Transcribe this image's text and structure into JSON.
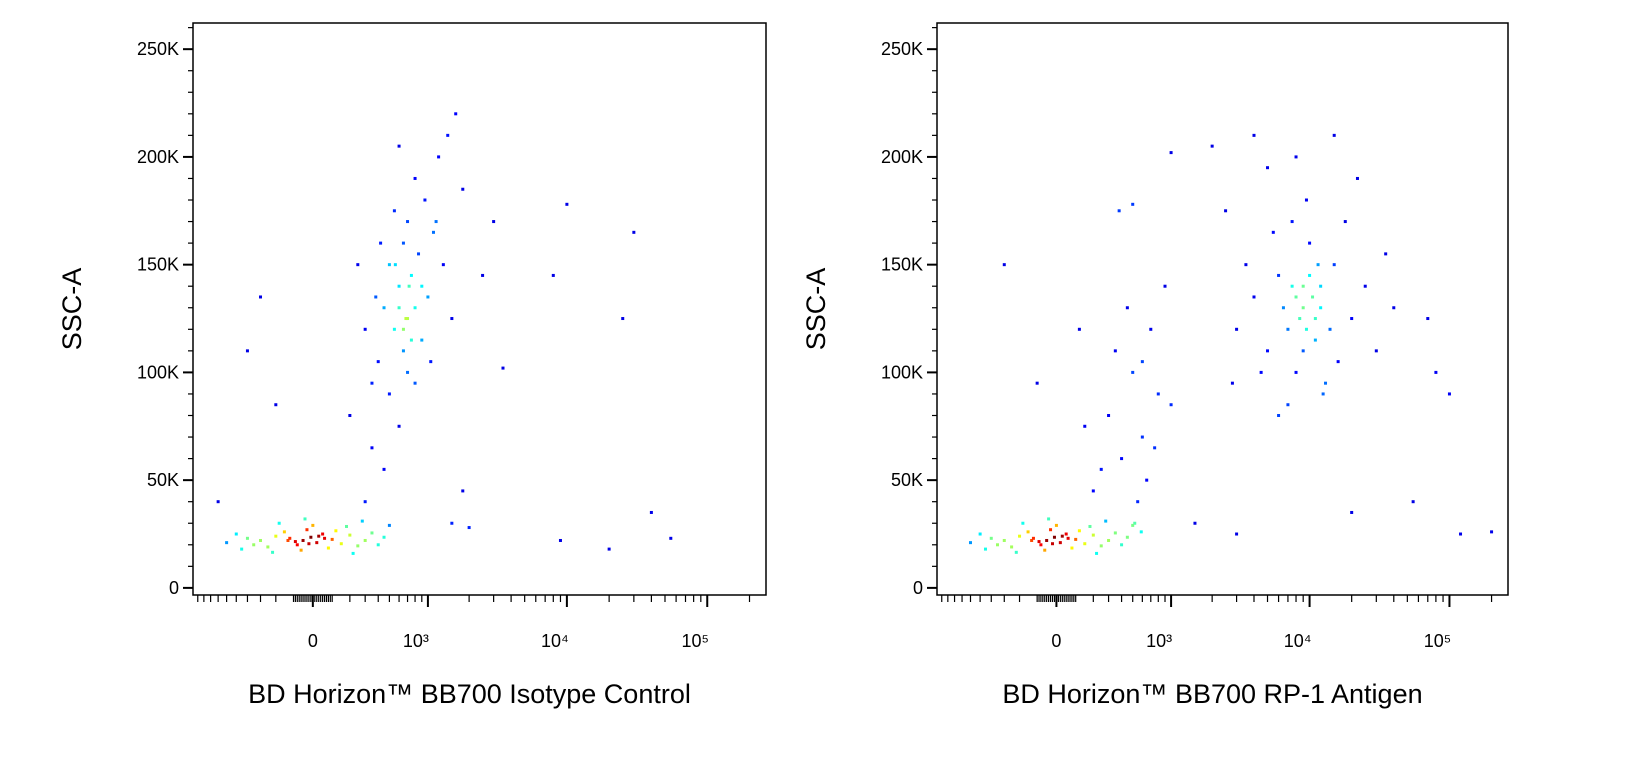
{
  "chart_data": [
    {
      "type": "scatter",
      "xscale": "biexponential",
      "x_label": "BD Horizon™ BB700  Isotype Control",
      "y_label": "SSC-A",
      "xlim": [
        -1085,
        262144
      ],
      "ylim": [
        -3300,
        262144
      ],
      "xticks": [
        0,
        {
          "value": 1000,
          "label": "10³"
        },
        {
          "value": 10000,
          "label": "10⁴"
        },
        {
          "value": 100000,
          "label": "10⁵"
        }
      ],
      "yticks": [
        0,
        {
          "value": 50000,
          "label": "50K"
        },
        {
          "value": 100000,
          "label": "100K"
        },
        {
          "value": 150000,
          "label": "150K"
        },
        {
          "value": 200000,
          "label": "200K"
        },
        {
          "value": 250000,
          "label": "250K"
        }
      ],
      "x": [
        -50,
        -120,
        20,
        -200,
        100,
        -80,
        50,
        -300,
        150,
        -10,
        -250,
        200,
        -150,
        80,
        -400,
        300,
        -30,
        120,
        -350,
        250,
        -60,
        -500,
        350,
        0,
        -180,
        180,
        -450,
        400,
        -90,
        60,
        -20,
        30,
        -130,
        -600,
        450,
        -220,
        220,
        500,
        -40,
        280,
        300,
        450,
        350,
        600,
        500,
        800,
        400,
        650,
        550,
        900,
        700,
        450,
        1000,
        600,
        750,
        500,
        850,
        650,
        1100,
        700,
        550,
        950,
        800,
        1200,
        600,
        1400,
        1600,
        380,
        300,
        1300,
        1500,
        200,
        420,
        900,
        1050,
        700,
        350,
        1800,
        250,
        1150,
        800,
        650,
        720,
        560,
        600,
        680,
        750,
        3000,
        10000,
        30000,
        8000,
        25000,
        2500,
        3500,
        1800,
        2000,
        9000,
        20000,
        40000,
        55000,
        1500,
        -700,
        -400,
        -200,
        -300
      ],
      "y": [
        22000,
        23000,
        21000,
        24000,
        22500,
        20000,
        25000,
        22000,
        20500,
        23500,
        19000,
        24500,
        26000,
        18500,
        23000,
        22000,
        27000,
        26500,
        20000,
        19500,
        17500,
        25000,
        25500,
        29000,
        30000,
        28500,
        18000,
        20000,
        21500,
        23000,
        20500,
        24000,
        22000,
        21000,
        23500,
        16500,
        16000,
        29000,
        32000,
        31000,
        40000,
        55000,
        65000,
        75000,
        90000,
        95000,
        105000,
        110000,
        120000,
        115000,
        125000,
        130000,
        135000,
        140000,
        145000,
        150000,
        155000,
        160000,
        165000,
        170000,
        175000,
        180000,
        190000,
        200000,
        205000,
        210000,
        220000,
        135000,
        120000,
        150000,
        125000,
        80000,
        160000,
        140000,
        105000,
        100000,
        95000,
        185000,
        150000,
        170000,
        130000,
        120000,
        140000,
        150000,
        130000,
        125000,
        115000,
        170000,
        178000,
        165000,
        145000,
        125000,
        145000,
        102000,
        45000,
        28000,
        22000,
        18000,
        35000,
        23000,
        30000,
        40000,
        110000,
        85000,
        135000
      ]
    },
    {
      "type": "scatter",
      "xscale": "biexponential",
      "x_label": "BD Horizon™ BB700  RP-1 Antigen",
      "y_label": "SSC-A",
      "xlim": [
        -1085,
        262144
      ],
      "ylim": [
        -3300,
        262144
      ],
      "xticks": [
        0,
        {
          "value": 1000,
          "label": "10³"
        },
        {
          "value": 10000,
          "label": "10⁴"
        },
        {
          "value": 100000,
          "label": "10⁵"
        }
      ],
      "yticks": [
        0,
        {
          "value": 50000,
          "label": "50K"
        },
        {
          "value": 100000,
          "label": "100K"
        },
        {
          "value": 150000,
          "label": "150K"
        },
        {
          "value": 200000,
          "label": "200K"
        },
        {
          "value": 250000,
          "label": "250K"
        }
      ],
      "x": [
        -50,
        -120,
        20,
        -200,
        100,
        -80,
        50,
        -300,
        150,
        -10,
        -250,
        200,
        -150,
        80,
        -400,
        300,
        -30,
        120,
        -350,
        250,
        -60,
        -500,
        350,
        0,
        -180,
        180,
        -450,
        400,
        -90,
        60,
        -20,
        30,
        -130,
        -600,
        450,
        -220,
        220,
        500,
        -40,
        280,
        588,
        520,
        200,
        400,
        600,
        300,
        800,
        500,
        350,
        700,
        450,
        900,
        250,
        150,
        -100,
        -300,
        1000,
        650,
        550,
        750,
        120,
        600,
        2000,
        500,
        380,
        9000,
        7000,
        12000,
        5000,
        15000,
        8000,
        10000,
        6000,
        20000,
        4000,
        11000,
        13000,
        7500,
        9500,
        3500,
        25000,
        16000,
        8500,
        10500,
        6500,
        14000,
        9000,
        5500,
        30000,
        18000,
        3000,
        11500,
        7000,
        12500,
        40000,
        2500,
        22000,
        8000,
        5000,
        15000,
        6000,
        4500,
        35000,
        2800,
        10000,
        9000,
        11000,
        8000,
        12000,
        9500,
        7500,
        100000,
        120000,
        200000,
        70000,
        55000,
        3000,
        1500,
        20000,
        4000,
        1000,
        80000
      ],
      "y": [
        22000,
        23000,
        21000,
        24000,
        22500,
        20000,
        25000,
        22000,
        20500,
        23500,
        19000,
        24500,
        26000,
        18500,
        23000,
        22000,
        27000,
        26500,
        20000,
        19500,
        17500,
        25000,
        25500,
        29000,
        30000,
        28500,
        18000,
        20000,
        21500,
        23000,
        20500,
        24000,
        22000,
        21000,
        23500,
        16500,
        16000,
        29000,
        32000,
        31000,
        26000,
        30000,
        45000,
        60000,
        70000,
        80000,
        90000,
        100000,
        110000,
        120000,
        130000,
        140000,
        55000,
        75000,
        95000,
        150000,
        85000,
        50000,
        40000,
        65000,
        120000,
        105000,
        205000,
        178000,
        175000,
        130000,
        120000,
        140000,
        110000,
        150000,
        100000,
        160000,
        145000,
        125000,
        135000,
        115000,
        95000,
        170000,
        180000,
        150000,
        140000,
        105000,
        125000,
        135000,
        130000,
        120000,
        110000,
        165000,
        110000,
        170000,
        120000,
        150000,
        85000,
        90000,
        130000,
        175000,
        190000,
        200000,
        195000,
        210000,
        80000,
        100000,
        155000,
        95000,
        145000,
        140000,
        125000,
        135000,
        130000,
        120000,
        140000,
        90000,
        25000,
        26000,
        125000,
        40000,
        25000,
        30000,
        35000,
        210000,
        202000,
        100000
      ]
    }
  ]
}
